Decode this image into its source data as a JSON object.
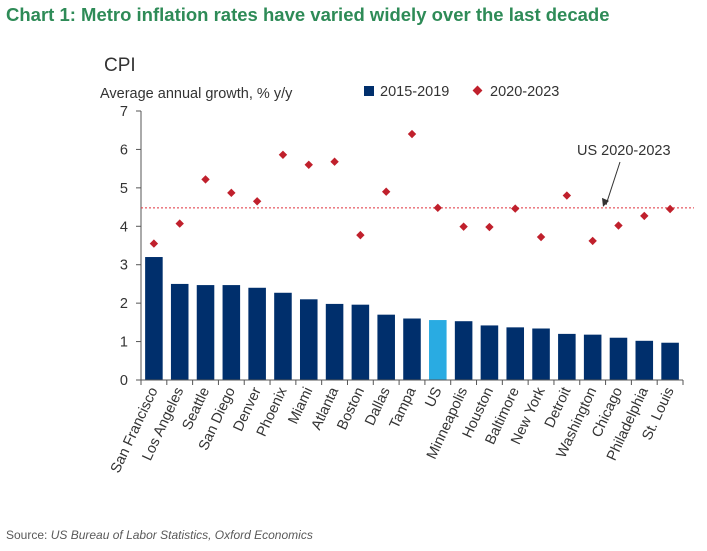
{
  "title": "Chart 1: Metro inflation rates have varied widely over the last decade",
  "source": {
    "label": "Source: ",
    "text": "US Bureau of Labor Statistics, Oxford Economics"
  },
  "chart_data": {
    "type": "bar",
    "subtitle": "CPI",
    "ylabel": "Average annual growth, % y/y",
    "ylim": [
      0,
      7
    ],
    "yticks": [
      "0",
      "1",
      "2",
      "3",
      "4",
      "5",
      "6",
      "7"
    ],
    "grid": false,
    "legend_position": "top-right",
    "categories": [
      "San Francisco",
      "Los Angeles",
      "Seattle",
      "San Diego",
      "Denver",
      "Phoenix",
      "Miami",
      "Atlanta",
      "Boston",
      "Dallas",
      "Tampa",
      "US",
      "Minneapolis",
      "Houston",
      "Baltimore",
      "New York",
      "Detroit",
      "Washington",
      "Chicago",
      "Philadelphia",
      "St. Louis"
    ],
    "series": [
      {
        "name": "2015-2019",
        "type": "bar",
        "color": "#002f6c",
        "highlight": {
          "category": "US",
          "color": "#29abe2"
        },
        "values": [
          3.2,
          2.5,
          2.47,
          2.47,
          2.4,
          2.27,
          2.1,
          1.98,
          1.96,
          1.7,
          1.6,
          1.56,
          1.53,
          1.42,
          1.37,
          1.34,
          1.2,
          1.18,
          1.1,
          1.02,
          0.97
        ]
      },
      {
        "name": "2020-2023",
        "type": "scatter",
        "marker": "diamond",
        "color": "#c0202c",
        "values": [
          3.55,
          4.07,
          5.22,
          4.87,
          4.65,
          5.86,
          5.6,
          5.68,
          3.77,
          4.9,
          6.4,
          4.48,
          3.99,
          3.98,
          4.46,
          3.72,
          4.8,
          3.62,
          4.02,
          4.27,
          4.45
        ]
      }
    ],
    "reference_line": {
      "label": "US 2020-2023",
      "value": 4.48,
      "color": "#e0323c",
      "style": "dotted"
    }
  }
}
